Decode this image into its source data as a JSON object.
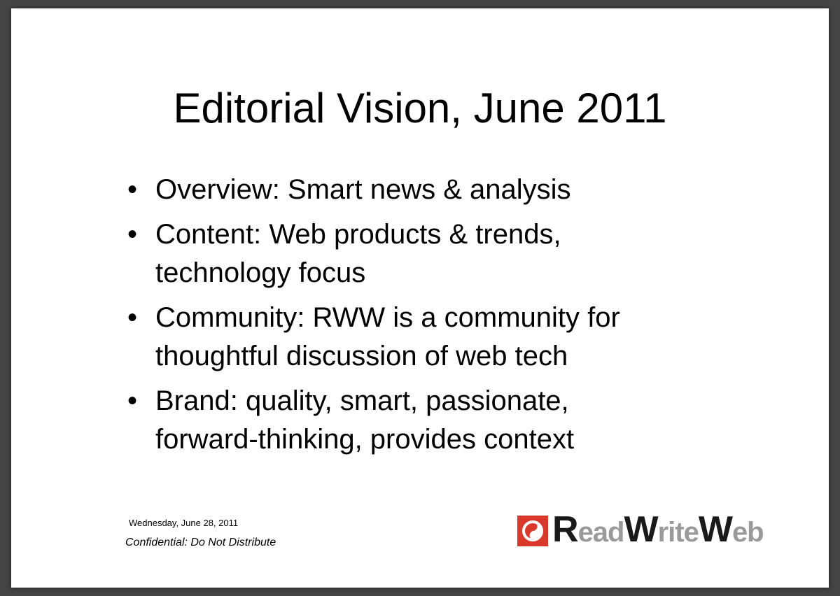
{
  "slide": {
    "title": "Editorial Vision, June 2011",
    "bullets": [
      {
        "line1": "Overview: Smart news & analysis",
        "line2": ""
      },
      {
        "line1": "Content: Web products & trends,",
        "line2": "technology focus"
      },
      {
        "line1": "Community: RWW is a community for",
        "line2": "thoughtful discussion of web tech"
      },
      {
        "line1": "Brand: quality, smart, passionate,",
        "line2": "forward-thinking, provides context"
      }
    ],
    "bullet_glyph": "•"
  },
  "footer": {
    "date": "Wednesday, June 28, 2011",
    "confidential": "Confidential: Do Not Distribute"
  },
  "logo": {
    "icon": "readwriteweb-swirl-icon",
    "parts": [
      "R",
      "ead",
      "W",
      "rite",
      "W",
      "eb"
    ],
    "brand_color": "#d9392b"
  }
}
